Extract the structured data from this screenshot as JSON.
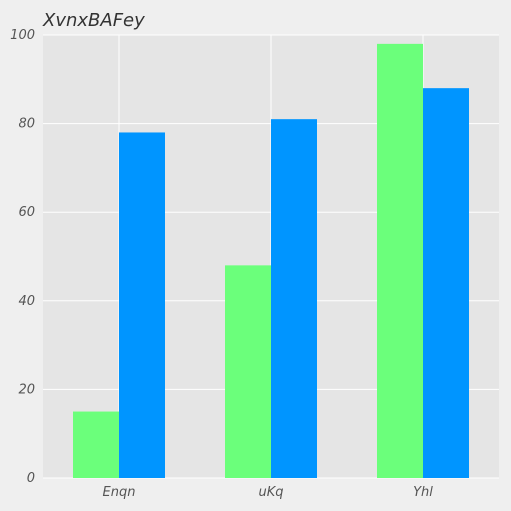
{
  "chart_data": {
    "type": "bar",
    "title": "XvnxBAFey",
    "xlabel": "",
    "ylabel": "",
    "categories": [
      "Enqn",
      "uKq",
      "Yhl"
    ],
    "series": [
      {
        "values": [
          15,
          48,
          98
        ],
        "color": "#6bff7b"
      },
      {
        "values": [
          78,
          81,
          88
        ],
        "color": "#0095ff"
      }
    ],
    "ylim": [
      0,
      100
    ],
    "yticks": [
      0,
      20,
      40,
      60,
      80,
      100
    ],
    "ytick_labels": [
      "0",
      "20",
      "40",
      "60",
      "80",
      "100"
    ],
    "grid": true,
    "legend": "none",
    "colors": {
      "background": "#efefef",
      "plot_area": "#e5e5e5",
      "grid": "#ffffff"
    }
  }
}
